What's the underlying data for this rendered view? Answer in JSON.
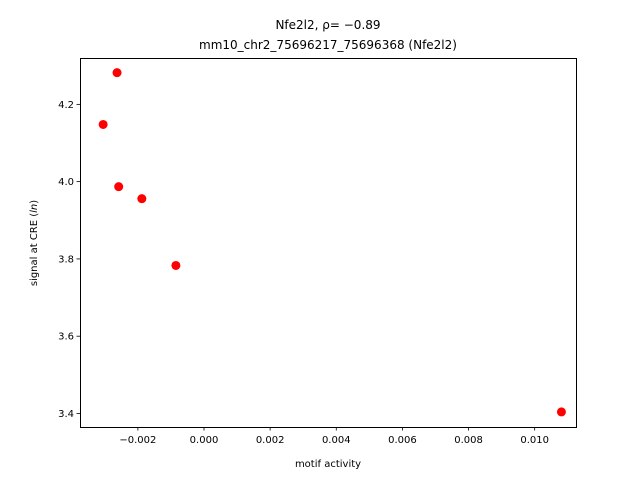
{
  "chart_data": {
    "type": "scatter",
    "title_line1": "Nfe2l2, ρ= −0.89",
    "title_line2": "mm10_chr2_75696217_75696368 (Nfe2l2)",
    "xlabel": "motif activity",
    "ylabel": "signal at CRE (ln)",
    "ylabel_prefix": "signal at CRE (",
    "ylabel_italic": "ln",
    "ylabel_suffix": ")",
    "xlim": [
      -0.00375,
      0.01125
    ],
    "ylim": [
      3.365,
      4.32
    ],
    "x_ticks": [
      -0.002,
      0.0,
      0.002,
      0.004,
      0.006,
      0.008,
      0.01
    ],
    "x_tick_labels": [
      "−0.002",
      "0.000",
      "0.002",
      "0.004",
      "0.006",
      "0.008",
      "0.010"
    ],
    "y_ticks": [
      3.4,
      3.6,
      3.8,
      4.0,
      4.2
    ],
    "y_tick_labels": [
      "3.4",
      "3.6",
      "3.8",
      "4.0",
      "4.2"
    ],
    "marker_color": "#ff0000",
    "grid": false,
    "points": [
      {
        "x": -0.00305,
        "y": 4.148
      },
      {
        "x": -0.00263,
        "y": 4.282
      },
      {
        "x": -0.00258,
        "y": 3.987
      },
      {
        "x": -0.00188,
        "y": 3.956
      },
      {
        "x": -0.00085,
        "y": 3.783
      },
      {
        "x": 0.01081,
        "y": 3.404
      }
    ]
  }
}
